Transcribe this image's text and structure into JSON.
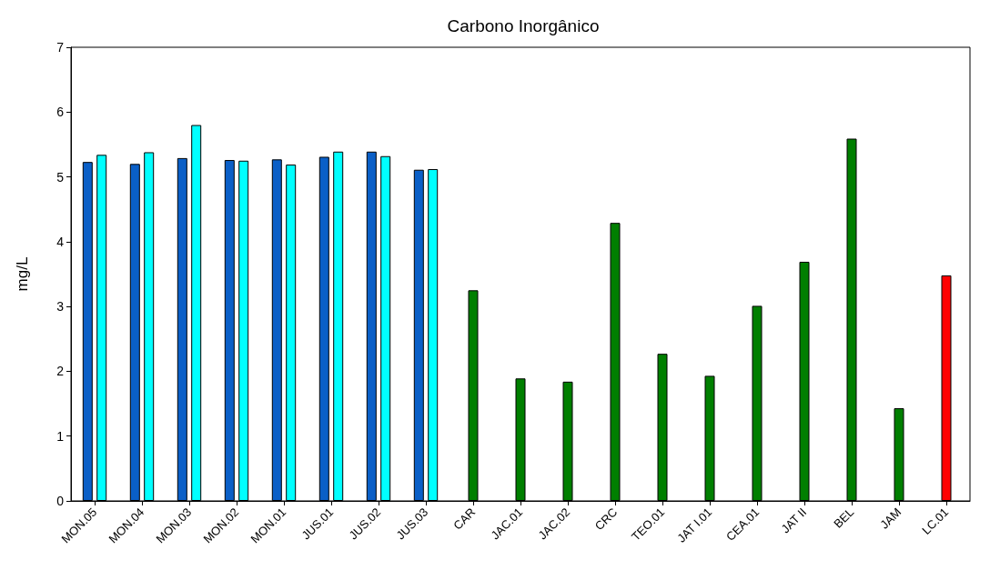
{
  "chart_data": {
    "type": "bar",
    "title": "Carbono Inorgânico",
    "ylabel": "mg/L",
    "categories": [
      "MON.05",
      "MON.04",
      "MON.03",
      "MON.02",
      "MON.01",
      "JUS.01",
      "JUS.02",
      "JUS.03",
      "CAR",
      "JAC.01",
      "JAC.02",
      "CRC",
      "TEO.01",
      "JAT I.01",
      "CEA.01",
      "JAT II",
      "BEL",
      "JAM",
      "LC.01"
    ],
    "series": [
      {
        "color": "#0a5fc7",
        "values": [
          5.23,
          5.2,
          5.29,
          5.26,
          5.27,
          5.31,
          5.39,
          5.11,
          null,
          null,
          null,
          null,
          null,
          null,
          null,
          null,
          null,
          null,
          null
        ]
      },
      {
        "color": "#00ffff",
        "values": [
          5.34,
          5.38,
          5.8,
          5.25,
          5.19,
          5.39,
          5.32,
          5.12,
          null,
          null,
          null,
          null,
          null,
          null,
          null,
          null,
          null,
          null,
          null
        ]
      },
      {
        "type": "bar",
        "color": "#007f00",
        "colors": [
          "#007f00",
          "#007f00",
          "#007f00",
          "#007f00",
          "#007f00",
          "#007f00",
          "#007f00",
          "#007f00",
          "#007f00",
          "#007f00",
          "#007f00",
          "#007f00",
          "#007f00",
          "#007f00",
          "#007f00",
          "#007f00",
          "#007f00",
          "#007f00",
          "#ff0000"
        ],
        "values": [
          null,
          null,
          null,
          null,
          null,
          null,
          null,
          null,
          3.25,
          1.89,
          1.84,
          4.29,
          2.27,
          1.93,
          3.01,
          3.69,
          5.59,
          1.43,
          3.48
        ]
      }
    ],
    "ylim": [
      0,
      7
    ],
    "yticks": [
      0,
      1,
      2,
      3,
      4,
      5,
      6,
      7
    ],
    "grid": false
  }
}
